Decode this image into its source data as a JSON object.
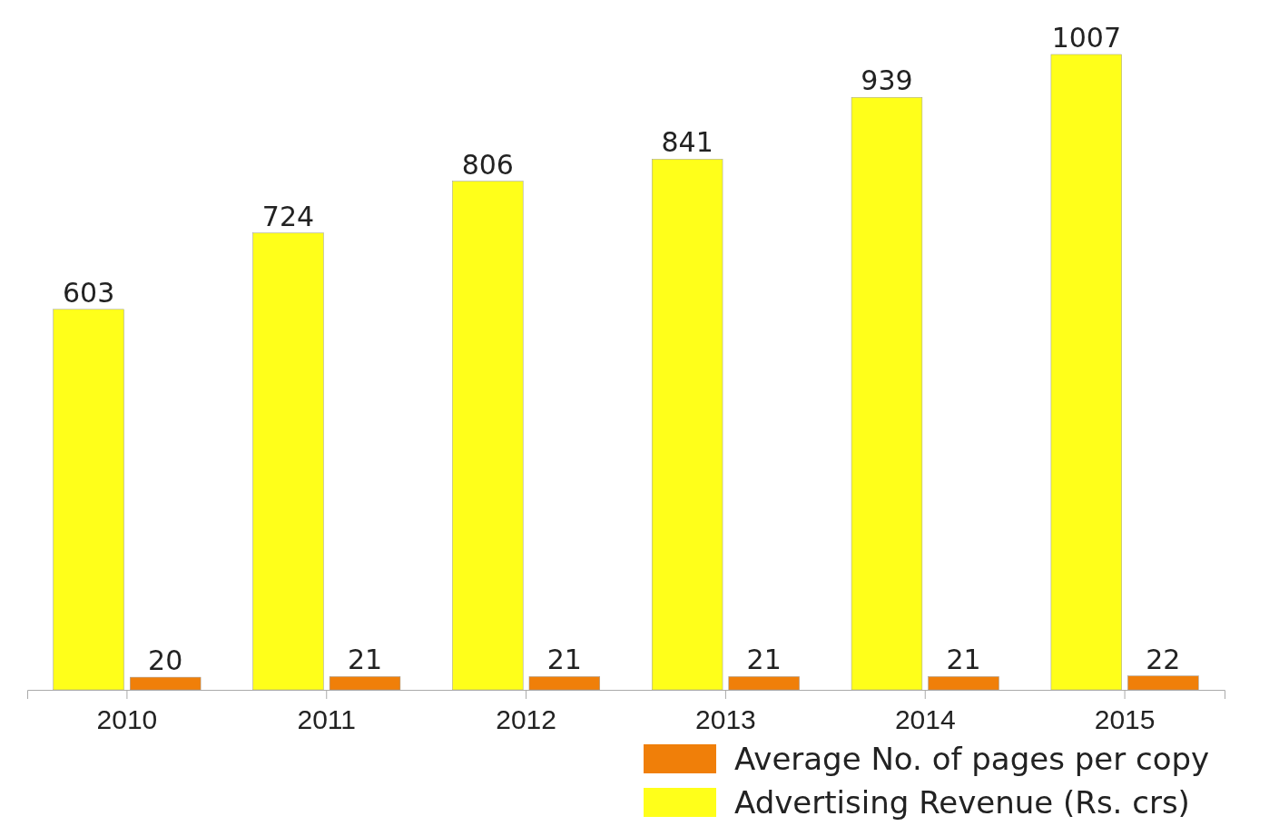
{
  "chart_data": {
    "type": "bar",
    "categories": [
      "2010",
      "2011",
      "2012",
      "2013",
      "2014",
      "2015"
    ],
    "series": [
      {
        "name": "Advertising Revenue (Rs. crs)",
        "color": "#ffff1a",
        "values": [
          603,
          724,
          806,
          841,
          939,
          1007
        ]
      },
      {
        "name": "Average No. of pages per copy",
        "color": "#f07f09",
        "values": [
          20,
          21,
          21,
          21,
          21,
          22
        ]
      }
    ],
    "data_labels": true,
    "grid": false,
    "legend": "bottom right",
    "tick_labels": "x"
  }
}
